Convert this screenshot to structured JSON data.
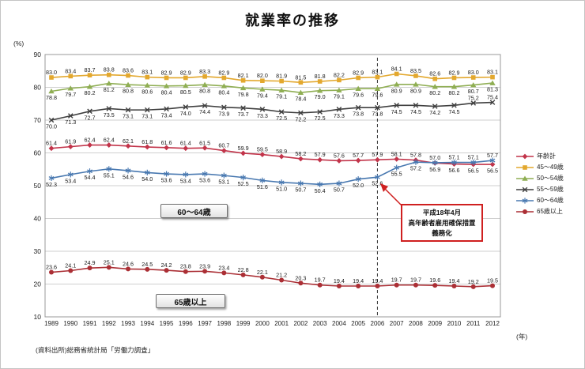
{
  "source_note": "(資料出所)総務省統計局「労働力調査」",
  "annotation": {
    "lines": [
      "平成18年4月",
      "高年齢者雇用確保措置",
      "義務化"
    ]
  },
  "callouts": {
    "c60_64": "60〜64歳",
    "c65": "65歳以上"
  },
  "chart_data": {
    "type": "line",
    "title": "就業率の推移",
    "y_unit": "(%)",
    "x_unit": "(年)",
    "ylim": [
      10,
      90
    ],
    "ytick_step": 10,
    "grid": true,
    "legend_position": "right",
    "vline_year": 2006,
    "x": [
      1989,
      1990,
      1991,
      1992,
      1993,
      1994,
      1995,
      1996,
      1997,
      1998,
      1999,
      2000,
      2001,
      2002,
      2003,
      2004,
      2005,
      2006,
      2007,
      2008,
      2009,
      2010,
      2011,
      2012
    ],
    "series": [
      {
        "id": "total",
        "name": "年齢計",
        "color": "#c2344a",
        "marker": "diamond",
        "label_pos": "above",
        "label_overrides": {
          "20": "below",
          "21": "below",
          "22": "below",
          "23": "below"
        },
        "values": [
          61.4,
          61.9,
          62.4,
          62.4,
          62.1,
          61.8,
          61.6,
          61.4,
          61.5,
          60.7,
          59.9,
          59.5,
          58.9,
          58.2,
          57.9,
          57.6,
          57.7,
          57.9,
          58.1,
          57.8,
          56.9,
          56.6,
          56.5,
          56.5
        ]
      },
      {
        "id": "45-49",
        "name": "45〜49歳",
        "color": "#e3a82e",
        "marker": "square",
        "label_pos": "above",
        "values": [
          83.0,
          83.4,
          83.7,
          83.8,
          83.6,
          83.1,
          82.9,
          82.9,
          83.3,
          82.9,
          82.1,
          82.0,
          81.9,
          81.5,
          81.8,
          82.2,
          82.9,
          83.1,
          84.1,
          83.5,
          82.6,
          82.9,
          83.0,
          83.1
        ]
      },
      {
        "id": "50-54",
        "name": "50〜54歳",
        "color": "#8fae53",
        "marker": "triangle",
        "label_pos": "below",
        "values": [
          78.8,
          79.7,
          80.2,
          81.2,
          80.8,
          80.6,
          80.4,
          80.5,
          80.8,
          80.4,
          79.8,
          79.4,
          79.1,
          78.4,
          79.0,
          79.1,
          79.6,
          79.6,
          80.9,
          80.9,
          80.2,
          80.2,
          80.7,
          81.3
        ]
      },
      {
        "id": "55-59",
        "name": "55〜59歳",
        "color": "#3f3f3f",
        "marker": "x",
        "label_pos": "below",
        "label_overrides": {
          "22": "above",
          "23": "above"
        },
        "values": [
          70.0,
          71.3,
          72.7,
          73.5,
          73.1,
          73.1,
          73.4,
          74.0,
          74.4,
          73.9,
          73.7,
          73.3,
          72.5,
          72.2,
          72.5,
          73.3,
          73.8,
          73.8,
          74.5,
          74.5,
          74.2,
          74.5,
          75.2,
          75.4
        ]
      },
      {
        "id": "60-64",
        "name": "60〜64歳",
        "color": "#4878b0",
        "marker": "asterisk",
        "label_pos": "below",
        "label_overrides": {
          "20": "above",
          "21": "above",
          "22": "above",
          "23": "above"
        },
        "values": [
          52.3,
          53.4,
          54.4,
          55.1,
          54.6,
          54.0,
          53.6,
          53.4,
          53.6,
          53.1,
          52.5,
          51.6,
          51.0,
          50.7,
          50.4,
          50.7,
          52.0,
          52.6,
          55.5,
          57.2,
          57.0,
          57.1,
          57.1,
          57.7
        ]
      },
      {
        "id": "65plus",
        "name": "65歳以上",
        "color": "#ab2f35",
        "marker": "circle",
        "label_pos": "above",
        "values": [
          23.6,
          24.1,
          24.9,
          25.1,
          24.6,
          24.5,
          24.2,
          23.8,
          23.9,
          23.4,
          22.8,
          22.1,
          21.2,
          20.3,
          19.7,
          19.4,
          19.4,
          19.4,
          19.7,
          19.7,
          19.6,
          19.4,
          19.2,
          19.5
        ]
      }
    ]
  }
}
